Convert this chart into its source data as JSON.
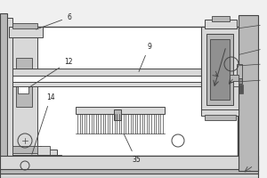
{
  "bg_color": "#f0f0f0",
  "white": "#ffffff",
  "line_color": "#444444",
  "fill_light": "#d8d8d8",
  "fill_mid": "#b8b8b8",
  "fill_dark": "#909090",
  "label_color": "#222222",
  "fig_width": 3.0,
  "fig_height": 2.0,
  "dpi": 100
}
